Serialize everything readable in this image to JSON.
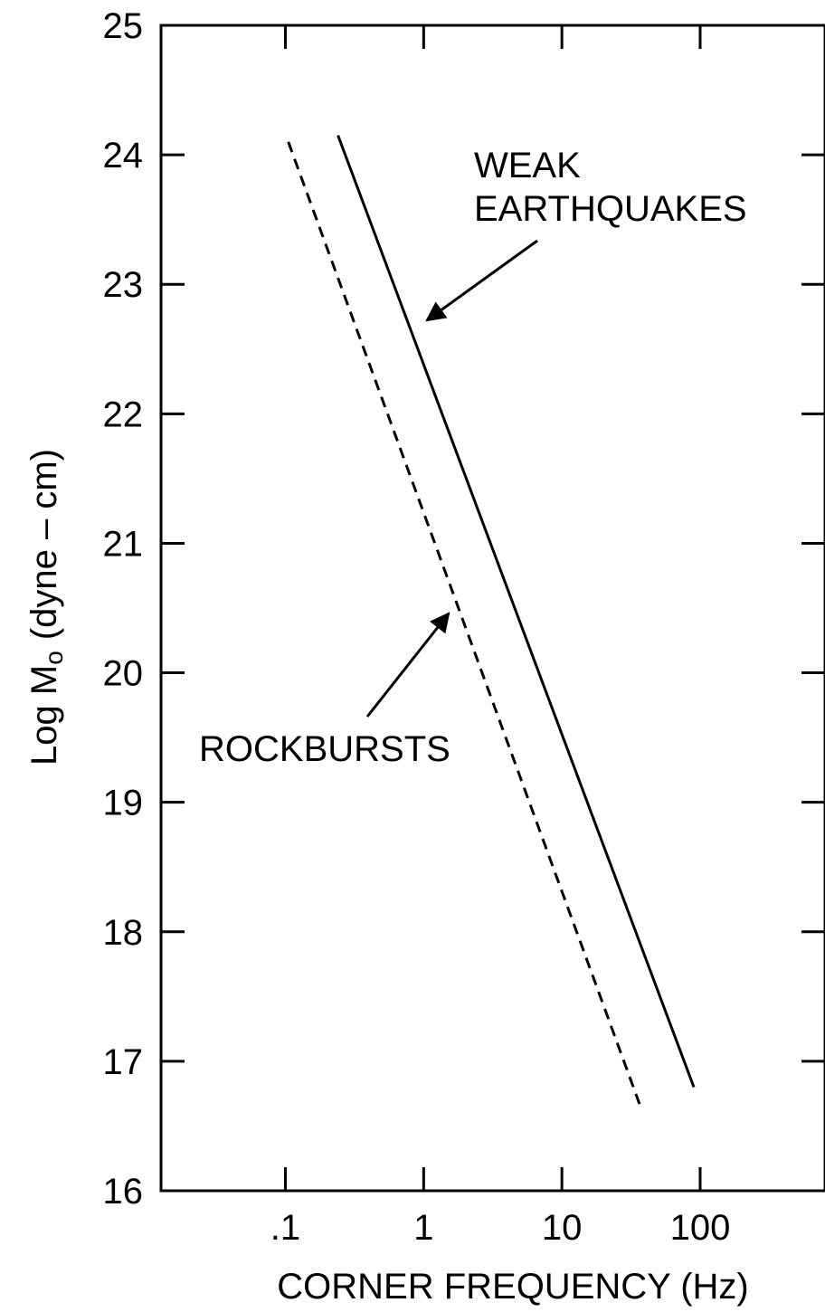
{
  "chart_data": {
    "type": "line",
    "title": "",
    "xlabel": "CORNER FREQUENCY (Hz)",
    "ylabel": "Log M",
    "ylabel_subscript": "o",
    "ylabel_units": "(dyne – cm)",
    "x_scale": "log",
    "xlim": [
      0.0126,
      800
    ],
    "ylim": [
      16,
      25
    ],
    "x_ticks": [
      {
        "value": 0.1,
        "label": ".1"
      },
      {
        "value": 1,
        "label": "1"
      },
      {
        "value": 10,
        "label": "10"
      },
      {
        "value": 100,
        "label": "100"
      }
    ],
    "y_ticks": [
      {
        "value": 16,
        "label": "16"
      },
      {
        "value": 17,
        "label": "17"
      },
      {
        "value": 18,
        "label": "18"
      },
      {
        "value": 19,
        "label": "19"
      },
      {
        "value": 20,
        "label": "20"
      },
      {
        "value": 21,
        "label": "21"
      },
      {
        "value": 22,
        "label": "22"
      },
      {
        "value": 23,
        "label": "23"
      },
      {
        "value": 24,
        "label": "24"
      },
      {
        "value": 25,
        "label": "25"
      }
    ],
    "grid": false,
    "series": [
      {
        "name": "WEAK EARTHQUAKES",
        "style": "solid",
        "color": "#000000",
        "x": [
          0.24,
          90
        ],
        "y": [
          24.15,
          16.8
        ]
      },
      {
        "name": "ROCKBURSTS",
        "style": "dashed",
        "color": "#000000",
        "x": [
          0.105,
          37
        ],
        "y": [
          24.1,
          16.65
        ]
      }
    ],
    "annotations": [
      {
        "lines": [
          "WEAK",
          "EARTHQUAKES"
        ],
        "points_to_series": 0
      },
      {
        "lines": [
          "ROCKBURSTS"
        ],
        "points_to_series": 1
      }
    ]
  }
}
